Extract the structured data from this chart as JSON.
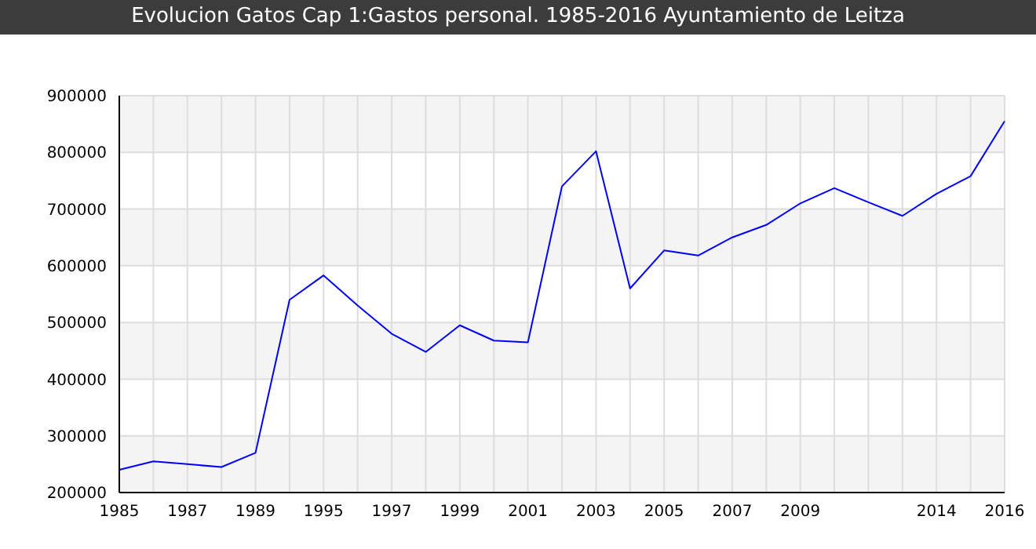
{
  "chart_data": {
    "type": "line",
    "title": "Evolucion Gatos Cap 1:Gastos personal. 1985-2016 Ayuntamiento de Leitza",
    "categories": [
      "1985",
      null,
      "1987",
      null,
      "1989",
      null,
      "1995",
      null,
      "1997",
      null,
      "1999",
      null,
      "2001",
      null,
      "2003",
      null,
      "2005",
      null,
      "2007",
      null,
      "2009",
      null,
      null,
      null,
      "2014",
      null,
      "2016"
    ],
    "series": [
      {
        "color": "#0000ff",
        "values": [
          240000,
          255000,
          250000,
          245000,
          270000,
          540000,
          583000,
          530000,
          480000,
          448000,
          495000,
          468000,
          465000,
          740000,
          802000,
          560000,
          627000,
          618000,
          650000,
          672000,
          710000,
          737000,
          712000,
          688000,
          727000,
          758000,
          855000
        ]
      }
    ],
    "ylim": [
      200000,
      900000
    ],
    "yticks": [
      200000,
      300000,
      400000,
      500000,
      600000,
      700000,
      800000,
      900000
    ],
    "grid": true,
    "marker": "none",
    "line_style": "solid"
  }
}
